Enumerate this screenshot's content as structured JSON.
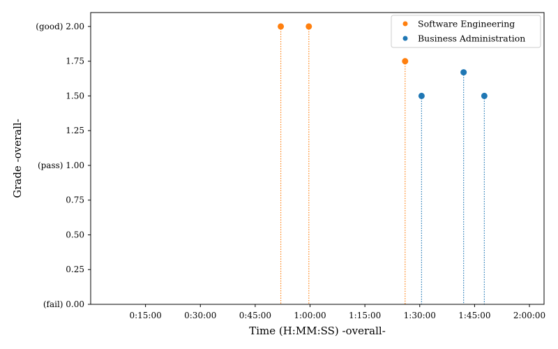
{
  "chart_data": {
    "type": "scatter",
    "xlabel": "Time (H:MM:SS) -overall-",
    "ylabel": "Grade -overall-",
    "xlim_minutes": [
      0,
      124
    ],
    "ylim": [
      0,
      2.1
    ],
    "x_ticks": [
      {
        "minutes": 15,
        "label": "0:15:00"
      },
      {
        "minutes": 30,
        "label": "0:30:00"
      },
      {
        "minutes": 45,
        "label": "0:45:00"
      },
      {
        "minutes": 60,
        "label": "1:00:00"
      },
      {
        "minutes": 75,
        "label": "1:15:00"
      },
      {
        "minutes": 90,
        "label": "1:30:00"
      },
      {
        "minutes": 105,
        "label": "1:45:00"
      },
      {
        "minutes": 120,
        "label": "2:00:00"
      }
    ],
    "y_ticks": [
      {
        "value": 0.0,
        "label": "(fail) 0.00"
      },
      {
        "value": 0.25,
        "label": "0.25"
      },
      {
        "value": 0.5,
        "label": "0.50"
      },
      {
        "value": 0.75,
        "label": "0.75"
      },
      {
        "value": 1.0,
        "label": "(pass) 1.00"
      },
      {
        "value": 1.25,
        "label": "1.25"
      },
      {
        "value": 1.5,
        "label": "1.50"
      },
      {
        "value": 1.75,
        "label": "1.75"
      },
      {
        "value": 2.0,
        "label": "(good) 2.00"
      }
    ],
    "legend_position": "top-right",
    "grid": false,
    "series": [
      {
        "name": "Software Engineering",
        "color": "#ff7f0e",
        "points": [
          {
            "x": "0:52:00",
            "y": 2.0
          },
          {
            "x": "0:59:40",
            "y": 2.0
          },
          {
            "x": "1:26:00",
            "y": 1.75
          }
        ]
      },
      {
        "name": "Business Administration",
        "color": "#1f77b4",
        "points": [
          {
            "x": "1:30:30",
            "y": 1.5
          },
          {
            "x": "1:42:00",
            "y": 1.67
          },
          {
            "x": "1:47:40",
            "y": 1.5
          }
        ]
      }
    ]
  }
}
